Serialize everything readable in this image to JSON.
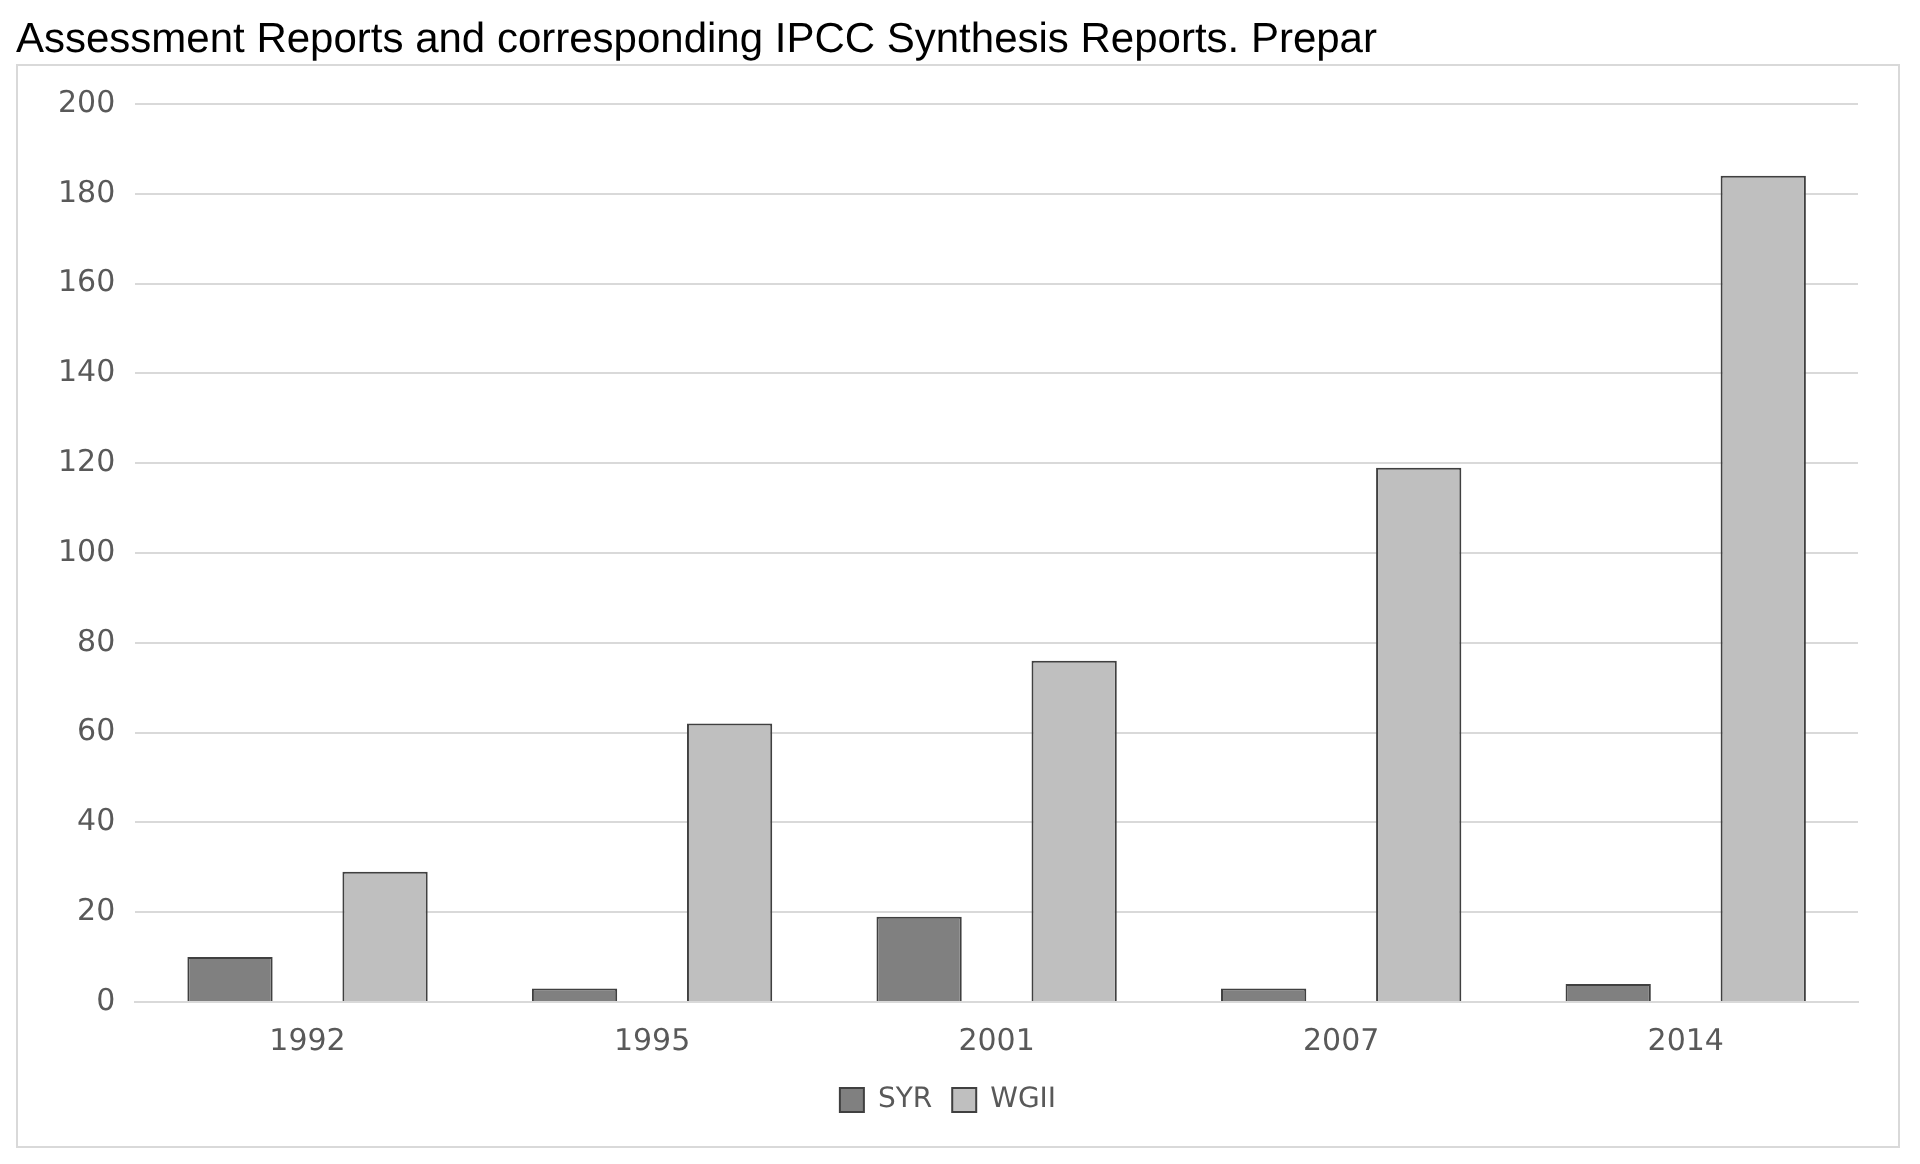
{
  "chart_data": {
    "type": "bar",
    "title": "Assessment Reports and corresponding IPCC Synthesis Reports. Prepar",
    "categories": [
      "1992",
      "1995",
      "2001",
      "2007",
      "2014"
    ],
    "series": [
      {
        "name": "SYR",
        "color": "#808080",
        "values": [
          10,
          3,
          19,
          3,
          4
        ]
      },
      {
        "name": "WGII",
        "color": "#bfbfbf",
        "values": [
          29,
          62,
          76,
          119,
          184
        ]
      }
    ],
    "ylim": [
      0,
      200
    ],
    "yticks": [
      0,
      20,
      40,
      60,
      80,
      100,
      120,
      140,
      160,
      180,
      200
    ],
    "grid": "y",
    "legend": "bottom"
  }
}
